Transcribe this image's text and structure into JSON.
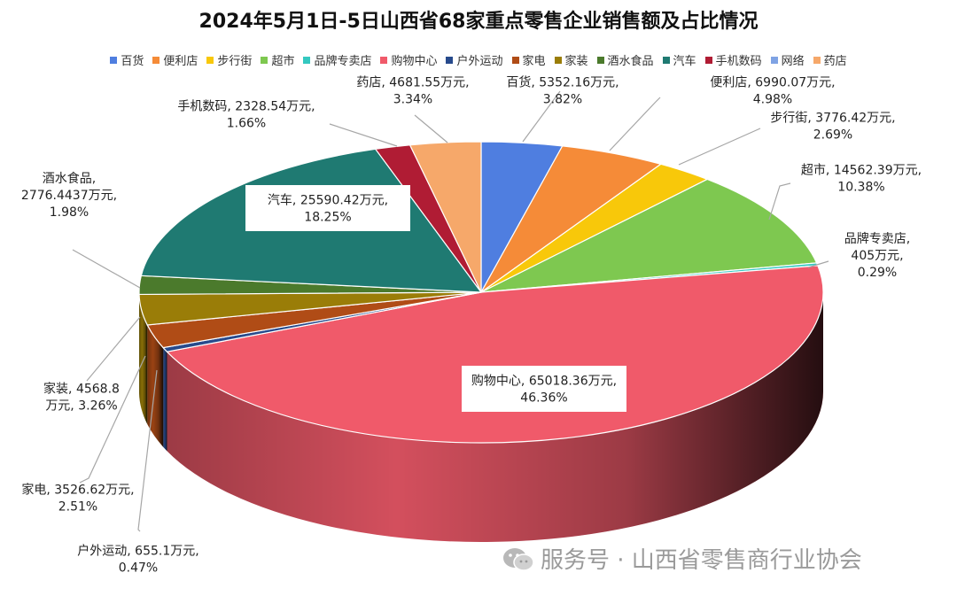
{
  "chart_data": {
    "type": "pie",
    "title": "2024年5月1日-5日山西省68家重点零售企业销售额及占比情况",
    "unit": "万元",
    "slices": [
      {
        "name": "百货",
        "value": 5352.16,
        "value_label": "5352.16万元",
        "percent_label": "3.82%",
        "color": "#4f7ee0"
      },
      {
        "name": "便利店",
        "value": 6990.07,
        "value_label": "6990.07万元",
        "percent_label": "4.98%",
        "color": "#f58b38"
      },
      {
        "name": "步行街",
        "value": 3776.42,
        "value_label": "3776.42万元",
        "percent_label": "2.69%",
        "color": "#f8c80a"
      },
      {
        "name": "超市",
        "value": 14562.39,
        "value_label": "14562.39万元",
        "percent_label": "10.38%",
        "color": "#7ec850"
      },
      {
        "name": "品牌专卖店",
        "value": 405,
        "value_label": "405万元",
        "percent_label": "0.29%",
        "color": "#34c8c0"
      },
      {
        "name": "购物中心",
        "value": 65018.36,
        "value_label": "65018.36万元",
        "percent_label": "46.36%",
        "color": "#f05a6a"
      },
      {
        "name": "户外运动",
        "value": 655.1,
        "value_label": "655.1万元",
        "percent_label": "0.47%",
        "color": "#274a8c"
      },
      {
        "name": "家电",
        "value": 3526.62,
        "value_label": "3526.62万元",
        "percent_label": "2.51%",
        "color": "#b04c16"
      },
      {
        "name": "家装",
        "value": 4568.8,
        "value_label": "4568.8万元",
        "percent_label": "3.26%",
        "color": "#9a7d08"
      },
      {
        "name": "酒水食品",
        "value": 2776.4437,
        "value_label": "2776.4437万元",
        "percent_label": "1.98%",
        "color": "#4b7a2c"
      },
      {
        "name": "汽车",
        "value": 25590.42,
        "value_label": "25590.42万元",
        "percent_label": "18.25%",
        "color": "#1f7a72"
      },
      {
        "name": "手机数码",
        "value": 2328.54,
        "value_label": "2328.54万元",
        "percent_label": "1.66%",
        "color": "#b01c34"
      },
      {
        "name": "网络",
        "value": 0,
        "value_label": "",
        "percent_label": "",
        "color": "#7fa3e4"
      },
      {
        "name": "药店",
        "value": 4681.55,
        "value_label": "4681.55万元",
        "percent_label": "3.34%",
        "color": "#f6a86a"
      }
    ],
    "legend_position": "top"
  },
  "watermark": {
    "text": "服务号 · 山西省零售商行业协会"
  }
}
